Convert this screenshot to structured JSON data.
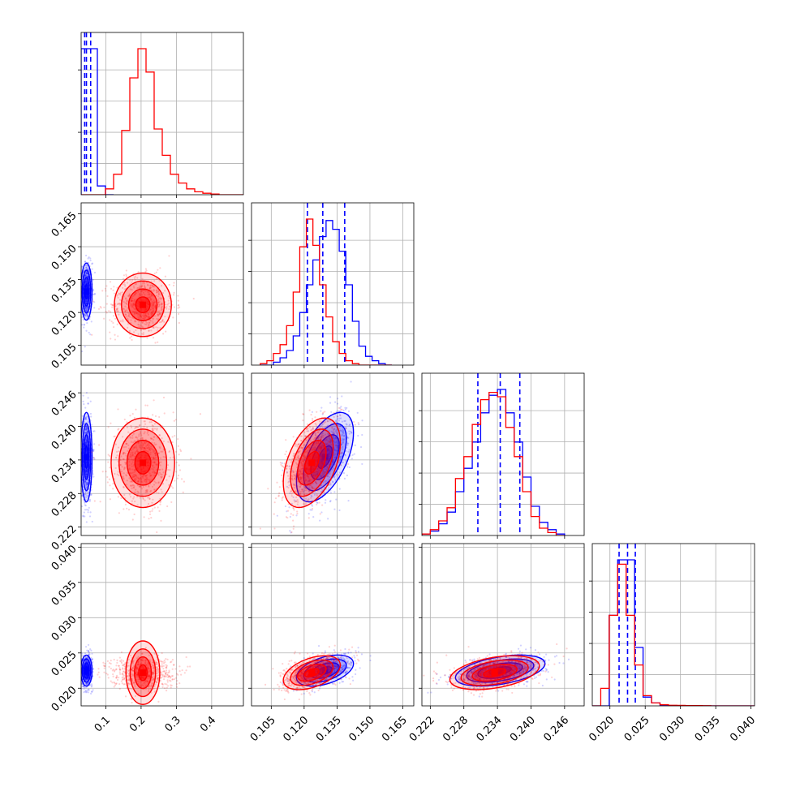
{
  "chart_data": {
    "type": "corner",
    "grid": true,
    "parameters": [
      {
        "range": [
          0.03,
          0.49
        ],
        "ticks": [
          0.1,
          0.2,
          0.3,
          0.4
        ],
        "tick_labels": [
          "0.1",
          "0.2",
          "0.3",
          "0.4"
        ],
        "show_y_ticks": false
      },
      {
        "range": [
          0.096,
          0.17
        ],
        "ticks": [
          0.105,
          0.12,
          0.135,
          0.15,
          0.165
        ],
        "tick_labels": [
          "0.105",
          "0.120",
          "0.135",
          "0.150",
          "0.165"
        ]
      },
      {
        "range": [
          0.2205,
          0.2495
        ],
        "ticks": [
          0.222,
          0.228,
          0.234,
          0.24,
          0.246
        ],
        "tick_labels": [
          "0.222",
          "0.228",
          "0.234",
          "0.240",
          "0.246"
        ]
      },
      {
        "range": [
          0.0175,
          0.0405
        ],
        "ticks": [
          0.02,
          0.025,
          0.03,
          0.035,
          0.04
        ],
        "tick_labels": [
          "0.020",
          "0.025",
          "0.030",
          "0.035",
          "0.040"
        ]
      }
    ],
    "series": [
      {
        "color": "#0000ff",
        "mean": [
          0.045,
          0.1295,
          0.2345,
          0.0225
        ],
        "std": [
          0.008,
          0.0065,
          0.004,
          0.0011
        ],
        "quantile_lines": [
          [
            0.04,
            0.045,
            0.057
          ],
          [
            0.1215,
            0.1285,
            0.1385
          ],
          [
            0.2305,
            0.2345,
            0.238
          ],
          [
            0.0213,
            0.0225,
            0.0236
          ]
        ],
        "hist": [
          {
            "edges": [
              0.03,
              0.053,
              0.076,
              0.099,
              0.122
            ],
            "counts": [
              1.0,
              1.0,
              0.06,
              0.0
            ]
          },
          {
            "edges": [
              0.1,
              0.103,
              0.106,
              0.109,
              0.112,
              0.115,
              0.118,
              0.121,
              0.124,
              0.127,
              0.13,
              0.133,
              0.136,
              0.139,
              0.142,
              0.145,
              0.148,
              0.151,
              0.154,
              0.157,
              0.16
            ],
            "counts": [
              0.0,
              0.0,
              0.02,
              0.05,
              0.1,
              0.2,
              0.36,
              0.55,
              0.72,
              0.88,
              0.99,
              0.93,
              0.78,
              0.55,
              0.3,
              0.13,
              0.06,
              0.03,
              0.01,
              0.0
            ]
          },
          {
            "edges": [
              0.2205,
              0.222,
              0.2235,
              0.225,
              0.2265,
              0.228,
              0.2295,
              0.231,
              0.2325,
              0.234,
              0.2355,
              0.237,
              0.2385,
              0.24,
              0.2415,
              0.243,
              0.2445,
              0.246
            ],
            "counts": [
              0.01,
              0.03,
              0.08,
              0.16,
              0.3,
              0.46,
              0.64,
              0.84,
              0.96,
              1.0,
              0.84,
              0.64,
              0.4,
              0.2,
              0.09,
              0.04,
              0.01
            ]
          },
          {
            "edges": [
              0.0175,
              0.0187,
              0.0199,
              0.0211,
              0.0223,
              0.0235,
              0.0247,
              0.0259,
              0.0271,
              0.0283,
              0.0295,
              0.0307,
              0.0319,
              0.0331,
              0.0343,
              0.0355,
              0.0367,
              0.0379,
              0.0391,
              0.0405
            ],
            "counts": [
              0.0,
              0.0,
              0.62,
              1.0,
              1.0,
              0.4,
              0.06,
              0.02,
              0.005,
              0.002,
              0.001,
              0.0,
              0.0,
              0.0,
              0.0,
              0.0,
              0.0,
              0.0,
              0.0
            ]
          }
        ],
        "corr": {
          "1-0": 0.0,
          "2-0": 0.0,
          "3-0": 0.0,
          "2-1": 0.55,
          "3-1": 0.45,
          "3-2": 0.45
        }
      },
      {
        "color": "#ff0000",
        "mean": [
          0.205,
          0.1235,
          0.2335,
          0.0222
        ],
        "std": [
          0.045,
          0.0065,
          0.004,
          0.0012
        ],
        "quantile_lines": [],
        "hist": [
          {
            "edges": [
              0.03,
              0.053,
              0.076,
              0.099,
              0.122,
              0.145,
              0.168,
              0.191,
              0.214,
              0.237,
              0.26,
              0.283,
              0.306,
              0.329,
              0.352,
              0.375,
              0.398,
              0.421,
              0.444,
              0.467,
              0.49
            ],
            "counts": [
              0.0,
              0.0,
              0.0,
              0.04,
              0.14,
              0.44,
              0.8,
              1.0,
              0.84,
              0.45,
              0.27,
              0.14,
              0.08,
              0.04,
              0.02,
              0.01,
              0.005,
              0.0,
              0.0,
              0.0
            ]
          },
          {
            "edges": [
              0.1,
              0.103,
              0.106,
              0.109,
              0.112,
              0.115,
              0.118,
              0.121,
              0.124,
              0.127,
              0.13,
              0.133,
              0.136,
              0.139,
              0.142,
              0.145,
              0.148,
              0.151,
              0.154,
              0.157,
              0.16
            ],
            "counts": [
              0.01,
              0.03,
              0.08,
              0.14,
              0.27,
              0.5,
              0.81,
              1.0,
              0.82,
              0.55,
              0.33,
              0.16,
              0.08,
              0.03,
              0.01,
              0.0,
              0.0,
              0.0,
              0.0,
              0.0
            ]
          },
          {
            "edges": [
              0.2205,
              0.222,
              0.2235,
              0.225,
              0.2265,
              0.228,
              0.2295,
              0.231,
              0.2325,
              0.234,
              0.2355,
              0.237,
              0.2385,
              0.24,
              0.2415,
              0.243,
              0.2445,
              0.246
            ],
            "counts": [
              0.01,
              0.04,
              0.1,
              0.19,
              0.39,
              0.54,
              0.76,
              0.93,
              0.98,
              0.95,
              0.74,
              0.54,
              0.3,
              0.13,
              0.05,
              0.02,
              0.0
            ]
          },
          {
            "edges": [
              0.0175,
              0.0187,
              0.0199,
              0.0211,
              0.0223,
              0.0235,
              0.0247,
              0.0259,
              0.0271,
              0.0283,
              0.0295,
              0.0307,
              0.0319,
              0.0331,
              0.0343,
              0.0355,
              0.0367,
              0.0379,
              0.0391,
              0.0405
            ],
            "counts": [
              0.0,
              0.12,
              0.62,
              0.97,
              0.62,
              0.28,
              0.07,
              0.02,
              0.008,
              0.004,
              0.003,
              0.002,
              0.002,
              0.001,
              0.0,
              0.0,
              0.0,
              0.0,
              0.0
            ]
          }
        ],
        "corr": {
          "1-0": 0.0,
          "2-0": 0.0,
          "3-0": 0.0,
          "2-1": 0.45,
          "3-1": 0.45,
          "3-2": 0.4
        }
      }
    ],
    "contour_levels_sigma": [
      0.5,
      1.0,
      1.5,
      2.0
    ]
  }
}
